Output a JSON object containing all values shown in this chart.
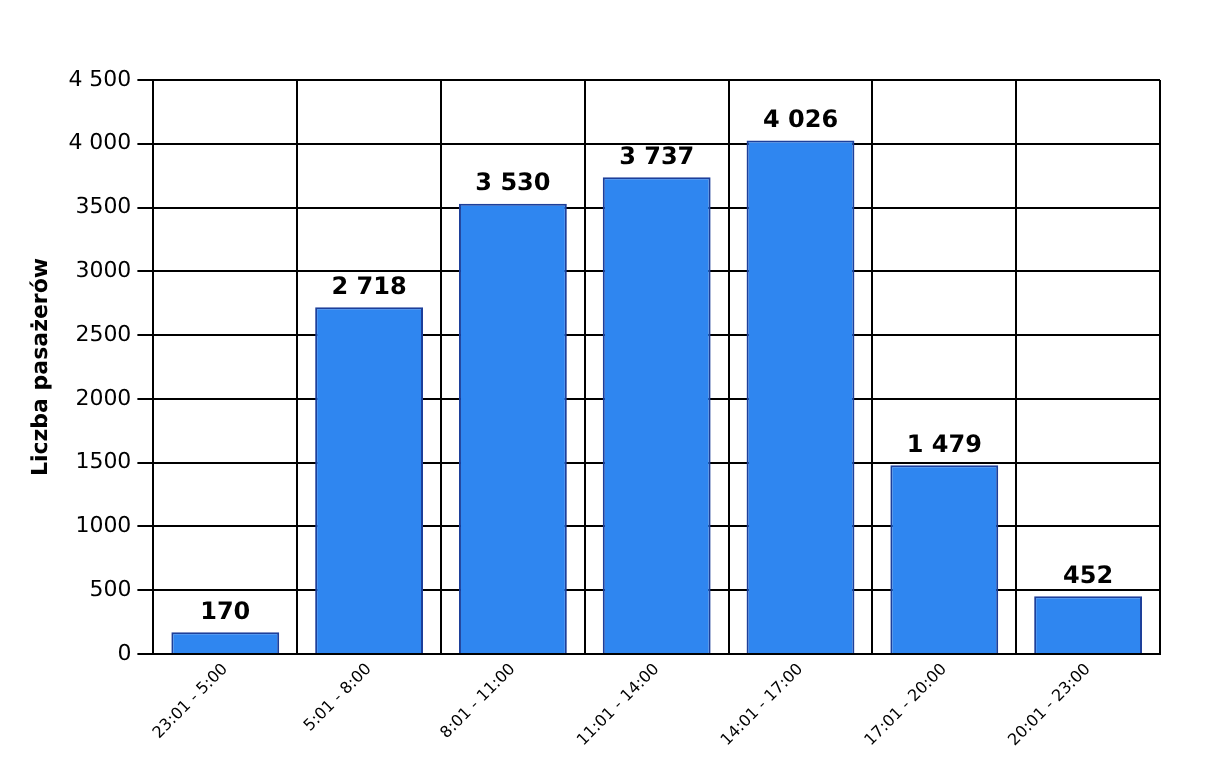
{
  "chart_data": {
    "type": "bar",
    "ylabel": "Liczba pasażerów",
    "categories": [
      "23:01 - 5:00",
      "5:01 - 8:00",
      "8:01 - 11:00",
      "11:01 - 14:00",
      "14:01 - 17:00",
      "17:01 - 20:00",
      "20:01 - 23:00"
    ],
    "values": [
      170,
      2718,
      3530,
      3737,
      4026,
      1479,
      452
    ],
    "value_labels": [
      "170",
      "2 718",
      "3 530",
      "3 737",
      "4 026",
      "1 479",
      "452"
    ],
    "color": "#2f86f0",
    "ylim": [
      0,
      4500
    ],
    "yticks": [
      0,
      500,
      1000,
      1500,
      2000,
      2500,
      3000,
      3500,
      {
        "value": 4000,
        "label": "4 000"
      },
      {
        "value": 4500,
        "label": "4 500"
      }
    ],
    "grid": true,
    "legend": false
  }
}
